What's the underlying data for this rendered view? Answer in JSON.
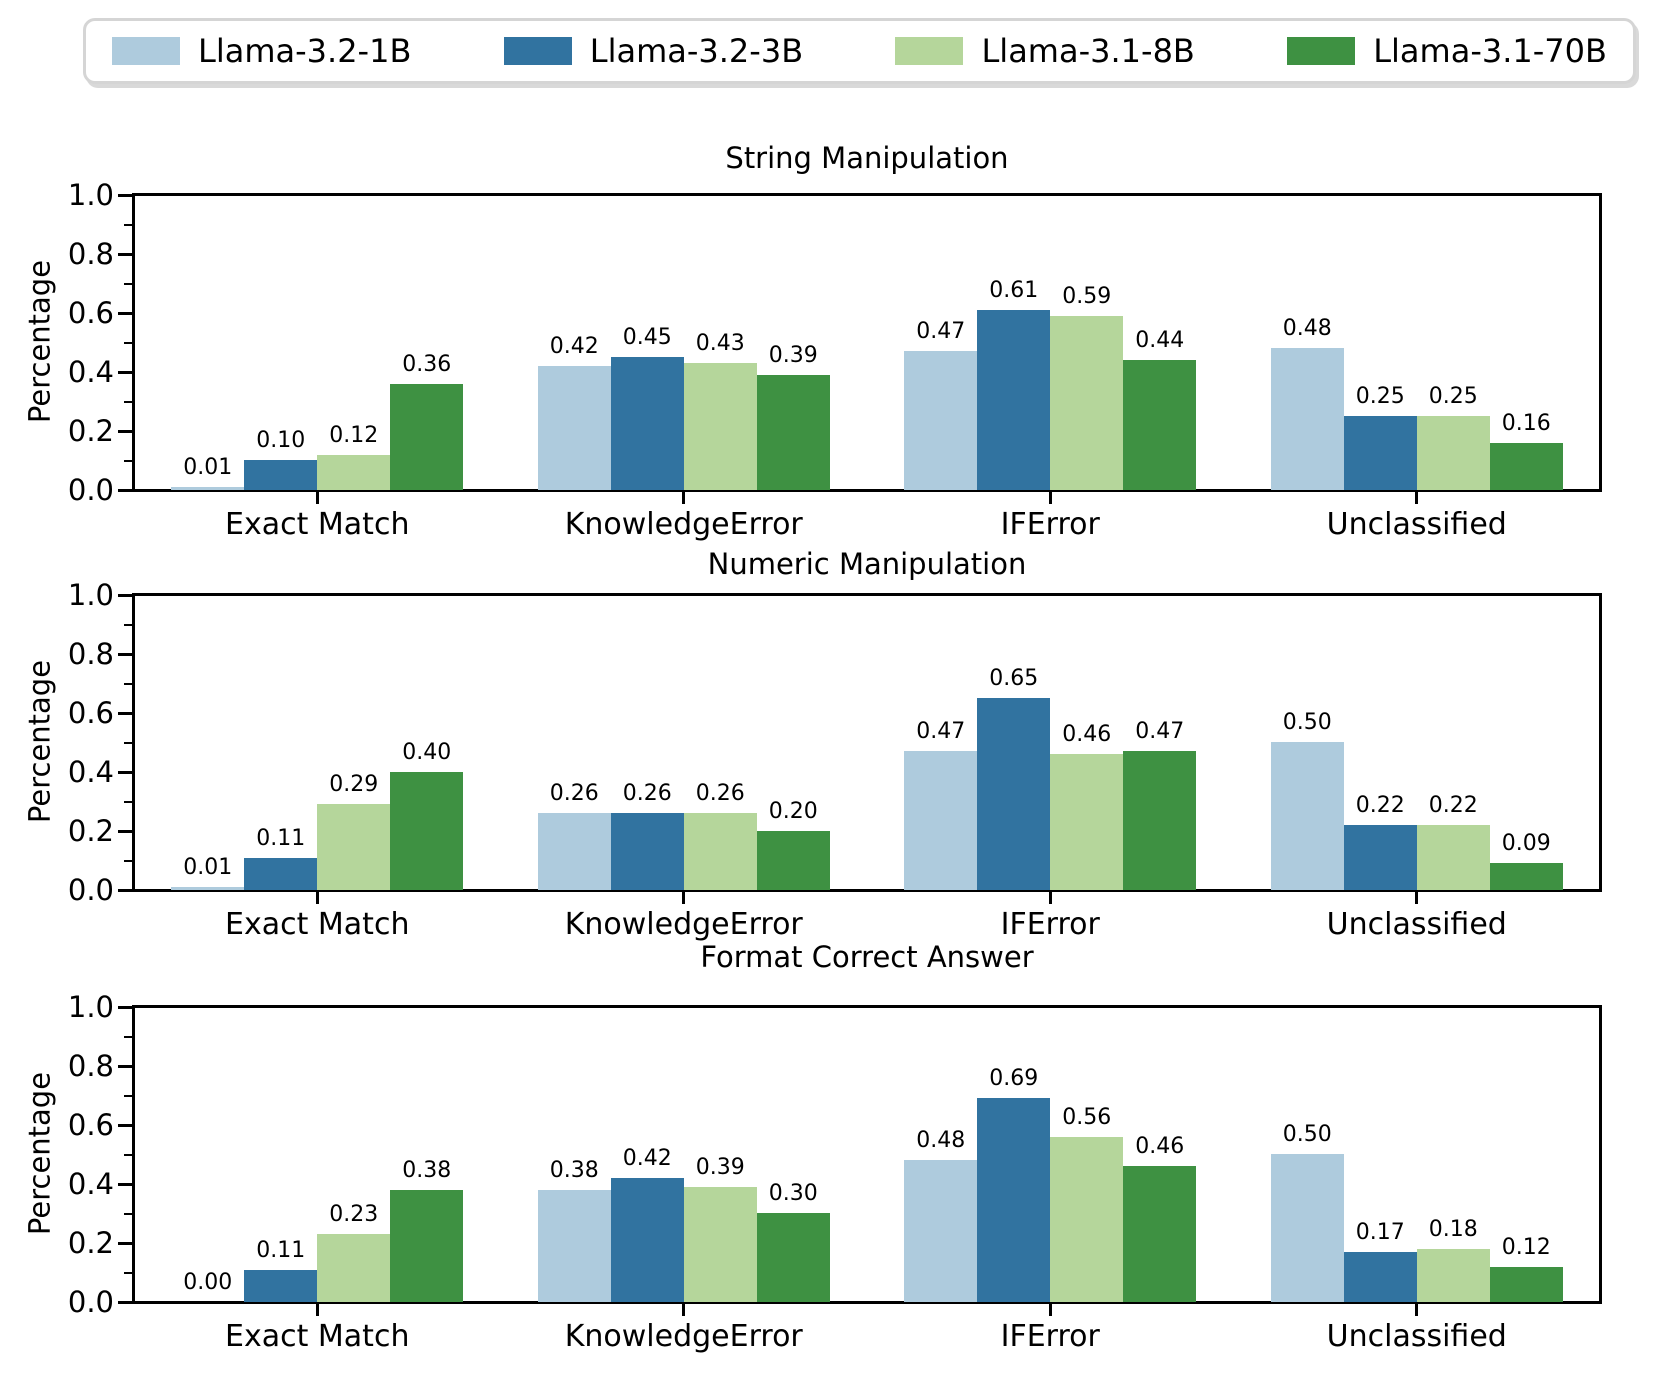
{
  "figure": {
    "ylabel": "Percentage",
    "yticks_major": [
      "0.0",
      "0.2",
      "0.4",
      "0.6",
      "0.8",
      "1.0"
    ],
    "categories": [
      "Exact Match",
      "KnowledgeError",
      "IFError",
      "Unclassified"
    ],
    "legend": [
      {
        "label": "Llama-3.2-1B",
        "color": "#aecbdd"
      },
      {
        "label": "Llama-3.2-3B",
        "color": "#3173a0"
      },
      {
        "label": "Llama-3.1-8B",
        "color": "#b5d69b"
      },
      {
        "label": "Llama-3.1-70B",
        "color": "#3e9142"
      }
    ]
  },
  "chart_data": [
    {
      "type": "bar",
      "title": "String Manipulation",
      "xlabel": "",
      "ylabel": "Percentage",
      "ylim": [
        0,
        1
      ],
      "grid": false,
      "legend_position": "top",
      "categories": [
        "Exact Match",
        "KnowledgeError",
        "IFError",
        "Unclassified"
      ],
      "series": [
        {
          "name": "Llama-3.2-1B",
          "color": "#aecbdd",
          "values": [
            0.01,
            0.42,
            0.47,
            0.48
          ]
        },
        {
          "name": "Llama-3.2-3B",
          "color": "#3173a0",
          "values": [
            0.1,
            0.45,
            0.61,
            0.25
          ]
        },
        {
          "name": "Llama-3.1-8B",
          "color": "#b5d69b",
          "values": [
            0.12,
            0.43,
            0.59,
            0.25
          ]
        },
        {
          "name": "Llama-3.1-70B",
          "color": "#3e9142",
          "values": [
            0.36,
            0.39,
            0.44,
            0.16
          ]
        }
      ]
    },
    {
      "type": "bar",
      "title": "Numeric Manipulation",
      "xlabel": "",
      "ylabel": "Percentage",
      "ylim": [
        0,
        1
      ],
      "grid": false,
      "categories": [
        "Exact Match",
        "KnowledgeError",
        "IFError",
        "Unclassified"
      ],
      "series": [
        {
          "name": "Llama-3.2-1B",
          "color": "#aecbdd",
          "values": [
            0.01,
            0.26,
            0.47,
            0.5
          ]
        },
        {
          "name": "Llama-3.2-3B",
          "color": "#3173a0",
          "values": [
            0.11,
            0.26,
            0.65,
            0.22
          ]
        },
        {
          "name": "Llama-3.1-8B",
          "color": "#b5d69b",
          "values": [
            0.29,
            0.26,
            0.46,
            0.22
          ]
        },
        {
          "name": "Llama-3.1-70B",
          "color": "#3e9142",
          "values": [
            0.4,
            0.2,
            0.47,
            0.09
          ]
        }
      ]
    },
    {
      "type": "bar",
      "title": "Format Correct Answer",
      "xlabel": "",
      "ylabel": "Percentage",
      "ylim": [
        0,
        1
      ],
      "grid": false,
      "categories": [
        "Exact Match",
        "KnowledgeError",
        "IFError",
        "Unclassified"
      ],
      "series": [
        {
          "name": "Llama-3.2-1B",
          "color": "#aecbdd",
          "values": [
            0.0,
            0.38,
            0.48,
            0.5
          ]
        },
        {
          "name": "Llama-3.2-3B",
          "color": "#3173a0",
          "values": [
            0.11,
            0.42,
            0.69,
            0.17
          ]
        },
        {
          "name": "Llama-3.1-8B",
          "color": "#b5d69b",
          "values": [
            0.23,
            0.39,
            0.56,
            0.18
          ]
        },
        {
          "name": "Llama-3.1-70B",
          "color": "#3e9142",
          "values": [
            0.38,
            0.3,
            0.46,
            0.12
          ]
        }
      ]
    }
  ]
}
